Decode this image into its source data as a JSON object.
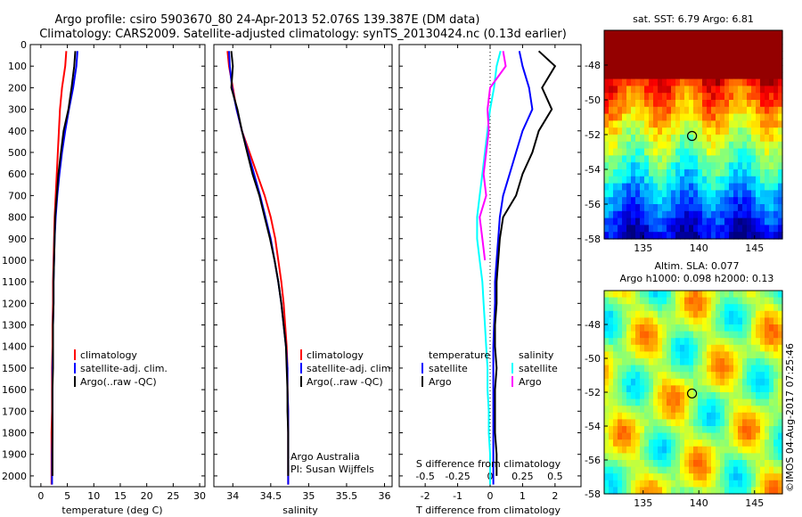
{
  "header": {
    "title_line1": "Argo profile: csiro 5903670_80 24-Apr-2013 52.076S 139.387E (DM data)",
    "title_line2": "Climatology: CARS2009. Satellite-adjusted climatology: synTS_20130424.nc (0.13d earlier)"
  },
  "colors": {
    "climatology": "#ff0000",
    "satellite_adj": "#0000ff",
    "argo": "#000000",
    "salinity_satellite": "#00ffff",
    "salinity_argo": "#ff00ff"
  },
  "depth_ticks": [
    0,
    100,
    200,
    300,
    400,
    500,
    600,
    700,
    800,
    900,
    1000,
    1100,
    1200,
    1300,
    1400,
    1500,
    1600,
    1700,
    1800,
    1900,
    2000
  ],
  "chart_data": [
    {
      "type": "line",
      "xlabel": "temperature (deg C)",
      "ylabel": "",
      "xlim": [
        -2,
        31
      ],
      "ylim": [
        2050,
        0
      ],
      "xticks": [
        0,
        5,
        10,
        15,
        20,
        25,
        30
      ],
      "legend": {
        "position": "lower-center",
        "entries": [
          "climatology",
          "satellite-adj. clim.",
          "Argo(..raw -QC)"
        ]
      },
      "series": [
        {
          "name": "climatology",
          "color": "#ff0000",
          "x": [
            4.8,
            4.6,
            4.0,
            3.6,
            3.4,
            3.2,
            3.0,
            2.8,
            2.6,
            2.5,
            2.4,
            2.3,
            2.3,
            2.2,
            2.2,
            2.1,
            2.1,
            2.1,
            2.0,
            2.0,
            2.0,
            2.0
          ],
          "y": [
            30,
            100,
            200,
            300,
            400,
            500,
            600,
            700,
            800,
            900,
            1000,
            1100,
            1200,
            1300,
            1400,
            1500,
            1600,
            1700,
            1800,
            1900,
            2000,
            2040
          ]
        },
        {
          "name": "satellite-adj. clim.",
          "color": "#0000ff",
          "x": [
            6.9,
            6.7,
            6.1,
            5.3,
            4.6,
            4.0,
            3.5,
            3.1,
            2.8,
            2.6,
            2.5,
            2.4,
            2.4,
            2.3,
            2.3,
            2.2,
            2.2,
            2.2,
            2.2,
            2.1,
            2.1,
            2.1
          ],
          "y": [
            30,
            100,
            200,
            300,
            400,
            500,
            600,
            700,
            800,
            900,
            1000,
            1100,
            1200,
            1300,
            1400,
            1500,
            1600,
            1700,
            1800,
            1900,
            2000,
            2040
          ]
        },
        {
          "name": "Argo(..raw -QC)",
          "color": "#000000",
          "x": [
            6.5,
            6.3,
            5.8,
            5.2,
            4.3,
            3.8,
            3.3,
            3.0,
            2.7,
            2.6,
            2.5,
            2.4,
            2.4,
            2.3,
            2.3,
            2.3,
            2.2,
            2.2,
            2.2,
            2.2,
            2.2
          ],
          "y": [
            30,
            100,
            200,
            300,
            400,
            500,
            600,
            700,
            800,
            900,
            1000,
            1100,
            1200,
            1300,
            1400,
            1500,
            1600,
            1700,
            1800,
            1900,
            2000
          ]
        }
      ]
    },
    {
      "type": "line",
      "xlabel": "salinity",
      "ylabel": "",
      "xlim": [
        33.75,
        36.1
      ],
      "ylim": [
        2050,
        0
      ],
      "xticks": [
        34,
        34.5,
        35,
        35.5,
        36
      ],
      "legend": {
        "position": "lower-center",
        "entries": [
          "climatology",
          "satellite-adj. clim.",
          "Argo(..raw -QC)"
        ]
      },
      "annotations": [
        "Argo Australia",
        "PI: Susan Wijffels"
      ],
      "series": [
        {
          "name": "climatology",
          "color": "#ff0000",
          "x": [
            33.93,
            33.95,
            34.0,
            34.05,
            34.12,
            34.22,
            34.32,
            34.42,
            34.5,
            34.56,
            34.6,
            34.64,
            34.67,
            34.69,
            34.71,
            34.72,
            34.72,
            34.73,
            34.73,
            34.73,
            34.73,
            34.73
          ],
          "y": [
            30,
            100,
            200,
            300,
            400,
            500,
            600,
            700,
            800,
            900,
            1000,
            1100,
            1200,
            1300,
            1400,
            1500,
            1600,
            1700,
            1800,
            1900,
            2000,
            2040
          ]
        },
        {
          "name": "satellite-adj. clim.",
          "color": "#0000ff",
          "x": [
            33.95,
            33.96,
            33.99,
            34.05,
            34.12,
            34.2,
            34.28,
            34.36,
            34.43,
            34.5,
            34.55,
            34.6,
            34.64,
            34.67,
            34.7,
            34.72,
            34.72,
            34.73,
            34.73,
            34.73,
            34.73,
            34.73
          ],
          "y": [
            30,
            100,
            200,
            300,
            400,
            500,
            600,
            700,
            800,
            900,
            1000,
            1100,
            1200,
            1300,
            1400,
            1500,
            1600,
            1700,
            1800,
            1900,
            2000,
            2040
          ]
        },
        {
          "name": "Argo(..raw -QC)",
          "color": "#000000",
          "x": [
            33.98,
            34.0,
            33.98,
            34.06,
            34.12,
            34.19,
            34.26,
            34.35,
            34.42,
            34.49,
            34.55,
            34.6,
            34.64,
            34.67,
            34.7,
            34.71,
            34.72,
            34.72,
            34.73,
            34.73,
            34.73
          ],
          "y": [
            30,
            100,
            200,
            300,
            400,
            500,
            600,
            700,
            800,
            900,
            1000,
            1100,
            1200,
            1300,
            1400,
            1500,
            1600,
            1700,
            1800,
            1900,
            2000
          ]
        }
      ]
    },
    {
      "type": "line",
      "xlabel": "T difference from climatology",
      "x2label": "S difference from climatology",
      "ylabel": "",
      "xlim": [
        -2.8,
        2.8
      ],
      "ylim": [
        2050,
        0
      ],
      "xticks": [
        -2,
        -1,
        0,
        1,
        2
      ],
      "x2ticks_labels": [
        "-0.5",
        "-0.25",
        "0",
        "0.25",
        "0.5"
      ],
      "x2ticks_values": [
        -0.5,
        -0.25,
        0,
        0.25,
        0.5
      ],
      "legend": {
        "position": "lower-center",
        "entries": [
          "temperature",
          "satellite",
          "Argo",
          "salinity",
          "satellite",
          "Argo"
        ]
      },
      "series": [
        {
          "name": "satellite",
          "color": "#0000ff",
          "quantity": "temperature",
          "x": [
            0.9,
            1.0,
            1.2,
            1.3,
            1.0,
            0.8,
            0.6,
            0.4,
            0.3,
            0.25,
            0.2,
            0.15,
            0.15,
            0.12,
            0.1,
            0.1,
            0.1,
            0.1,
            0.1,
            0.1,
            0.1,
            0.1
          ],
          "y": [
            30,
            100,
            200,
            300,
            400,
            500,
            600,
            700,
            800,
            900,
            1000,
            1100,
            1200,
            1300,
            1400,
            1500,
            1600,
            1700,
            1800,
            1900,
            2000,
            2040
          ]
        },
        {
          "name": "Argo",
          "color": "#000000",
          "quantity": "temperature",
          "x": [
            1.5,
            2.0,
            1.6,
            1.9,
            1.5,
            1.3,
            1.0,
            0.8,
            0.4,
            0.3,
            0.25,
            0.2,
            0.2,
            0.15,
            0.15,
            0.2,
            0.15,
            0.15,
            0.15,
            0.2,
            0.2
          ],
          "y": [
            30,
            100,
            200,
            300,
            400,
            500,
            600,
            700,
            800,
            900,
            1000,
            1100,
            1200,
            1300,
            1400,
            1500,
            1600,
            1700,
            1800,
            1900,
            2000
          ]
        },
        {
          "name": "satellite",
          "color": "#00ffff",
          "quantity": "salinity",
          "x": [
            0.08,
            0.05,
            0.03,
            0.0,
            -0.02,
            -0.04,
            -0.06,
            -0.08,
            -0.1,
            -0.1,
            -0.08,
            -0.06,
            -0.05,
            -0.04,
            -0.03,
            -0.02,
            -0.02,
            -0.01,
            -0.01,
            0.0,
            0.0,
            0.0
          ],
          "y": [
            30,
            100,
            200,
            300,
            400,
            500,
            600,
            700,
            800,
            900,
            1000,
            1100,
            1200,
            1300,
            1400,
            1500,
            1600,
            1700,
            1800,
            1900,
            2000,
            2040
          ]
        },
        {
          "name": "Argo",
          "color": "#ff00ff",
          "quantity": "salinity",
          "x": [
            0.1,
            0.12,
            0.0,
            -0.02,
            -0.01,
            -0.03,
            -0.05,
            -0.03,
            -0.08,
            -0.06,
            -0.04
          ],
          "y": [
            30,
            100,
            200,
            300,
            400,
            500,
            600,
            700,
            800,
            900,
            1000
          ]
        }
      ]
    },
    {
      "type": "heatmap",
      "title": "sat. SST: 6.79 Argo: 6.81",
      "xlim": [
        131.5,
        147.5
      ],
      "ylim": [
        -58,
        -46
      ],
      "xticks": [
        135,
        140,
        145
      ],
      "yticks": [
        -48,
        -50,
        -52,
        -54,
        -56,
        -58
      ],
      "marker": {
        "lon": 139.387,
        "lat": -52.076
      }
    },
    {
      "type": "heatmap",
      "title": "Altim. SLA: 0.077",
      "subtitle": "Argo h1000: 0.098 h2000: 0.13",
      "xlim": [
        131.5,
        147.5
      ],
      "ylim": [
        -58,
        -46
      ],
      "xticks": [
        135,
        140,
        145
      ],
      "yticks": [
        -48,
        -50,
        -52,
        -54,
        -56,
        -58
      ],
      "marker": {
        "lon": 139.387,
        "lat": -52.076
      }
    }
  ],
  "footer": {
    "timestamp": "©IMOS 04-Aug-2017 07:25:46"
  }
}
